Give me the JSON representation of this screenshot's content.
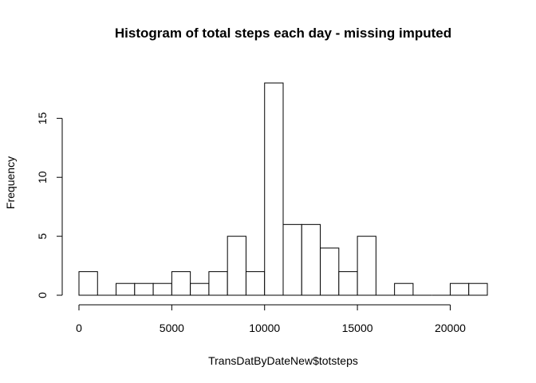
{
  "chart_data": {
    "type": "bar",
    "title": "Histogram of total steps each day - missing imputed",
    "xlabel": "TransDatByDateNew$totsteps",
    "ylabel": "Frequency",
    "bin_width": 1000,
    "bins": [
      {
        "start": 0,
        "end": 1000,
        "count": 2
      },
      {
        "start": 1000,
        "end": 2000,
        "count": 0
      },
      {
        "start": 2000,
        "end": 3000,
        "count": 1
      },
      {
        "start": 3000,
        "end": 4000,
        "count": 1
      },
      {
        "start": 4000,
        "end": 5000,
        "count": 1
      },
      {
        "start": 5000,
        "end": 6000,
        "count": 2
      },
      {
        "start": 6000,
        "end": 7000,
        "count": 1
      },
      {
        "start": 7000,
        "end": 8000,
        "count": 2
      },
      {
        "start": 8000,
        "end": 9000,
        "count": 5
      },
      {
        "start": 9000,
        "end": 10000,
        "count": 2
      },
      {
        "start": 10000,
        "end": 11000,
        "count": 18
      },
      {
        "start": 11000,
        "end": 12000,
        "count": 6
      },
      {
        "start": 12000,
        "end": 13000,
        "count": 6
      },
      {
        "start": 13000,
        "end": 14000,
        "count": 4
      },
      {
        "start": 14000,
        "end": 15000,
        "count": 2
      },
      {
        "start": 15000,
        "end": 16000,
        "count": 5
      },
      {
        "start": 16000,
        "end": 17000,
        "count": 0
      },
      {
        "start": 17000,
        "end": 18000,
        "count": 1
      },
      {
        "start": 18000,
        "end": 19000,
        "count": 0
      },
      {
        "start": 19000,
        "end": 20000,
        "count": 0
      },
      {
        "start": 20000,
        "end": 21000,
        "count": 1
      },
      {
        "start": 21000,
        "end": 22000,
        "count": 1
      }
    ],
    "xlim": [
      0,
      22000
    ],
    "ylim": [
      0,
      18
    ],
    "x_ticks": [
      0,
      5000,
      10000,
      15000,
      20000
    ],
    "y_ticks": [
      0,
      5,
      10,
      15
    ],
    "grid": false,
    "legend": "none"
  }
}
